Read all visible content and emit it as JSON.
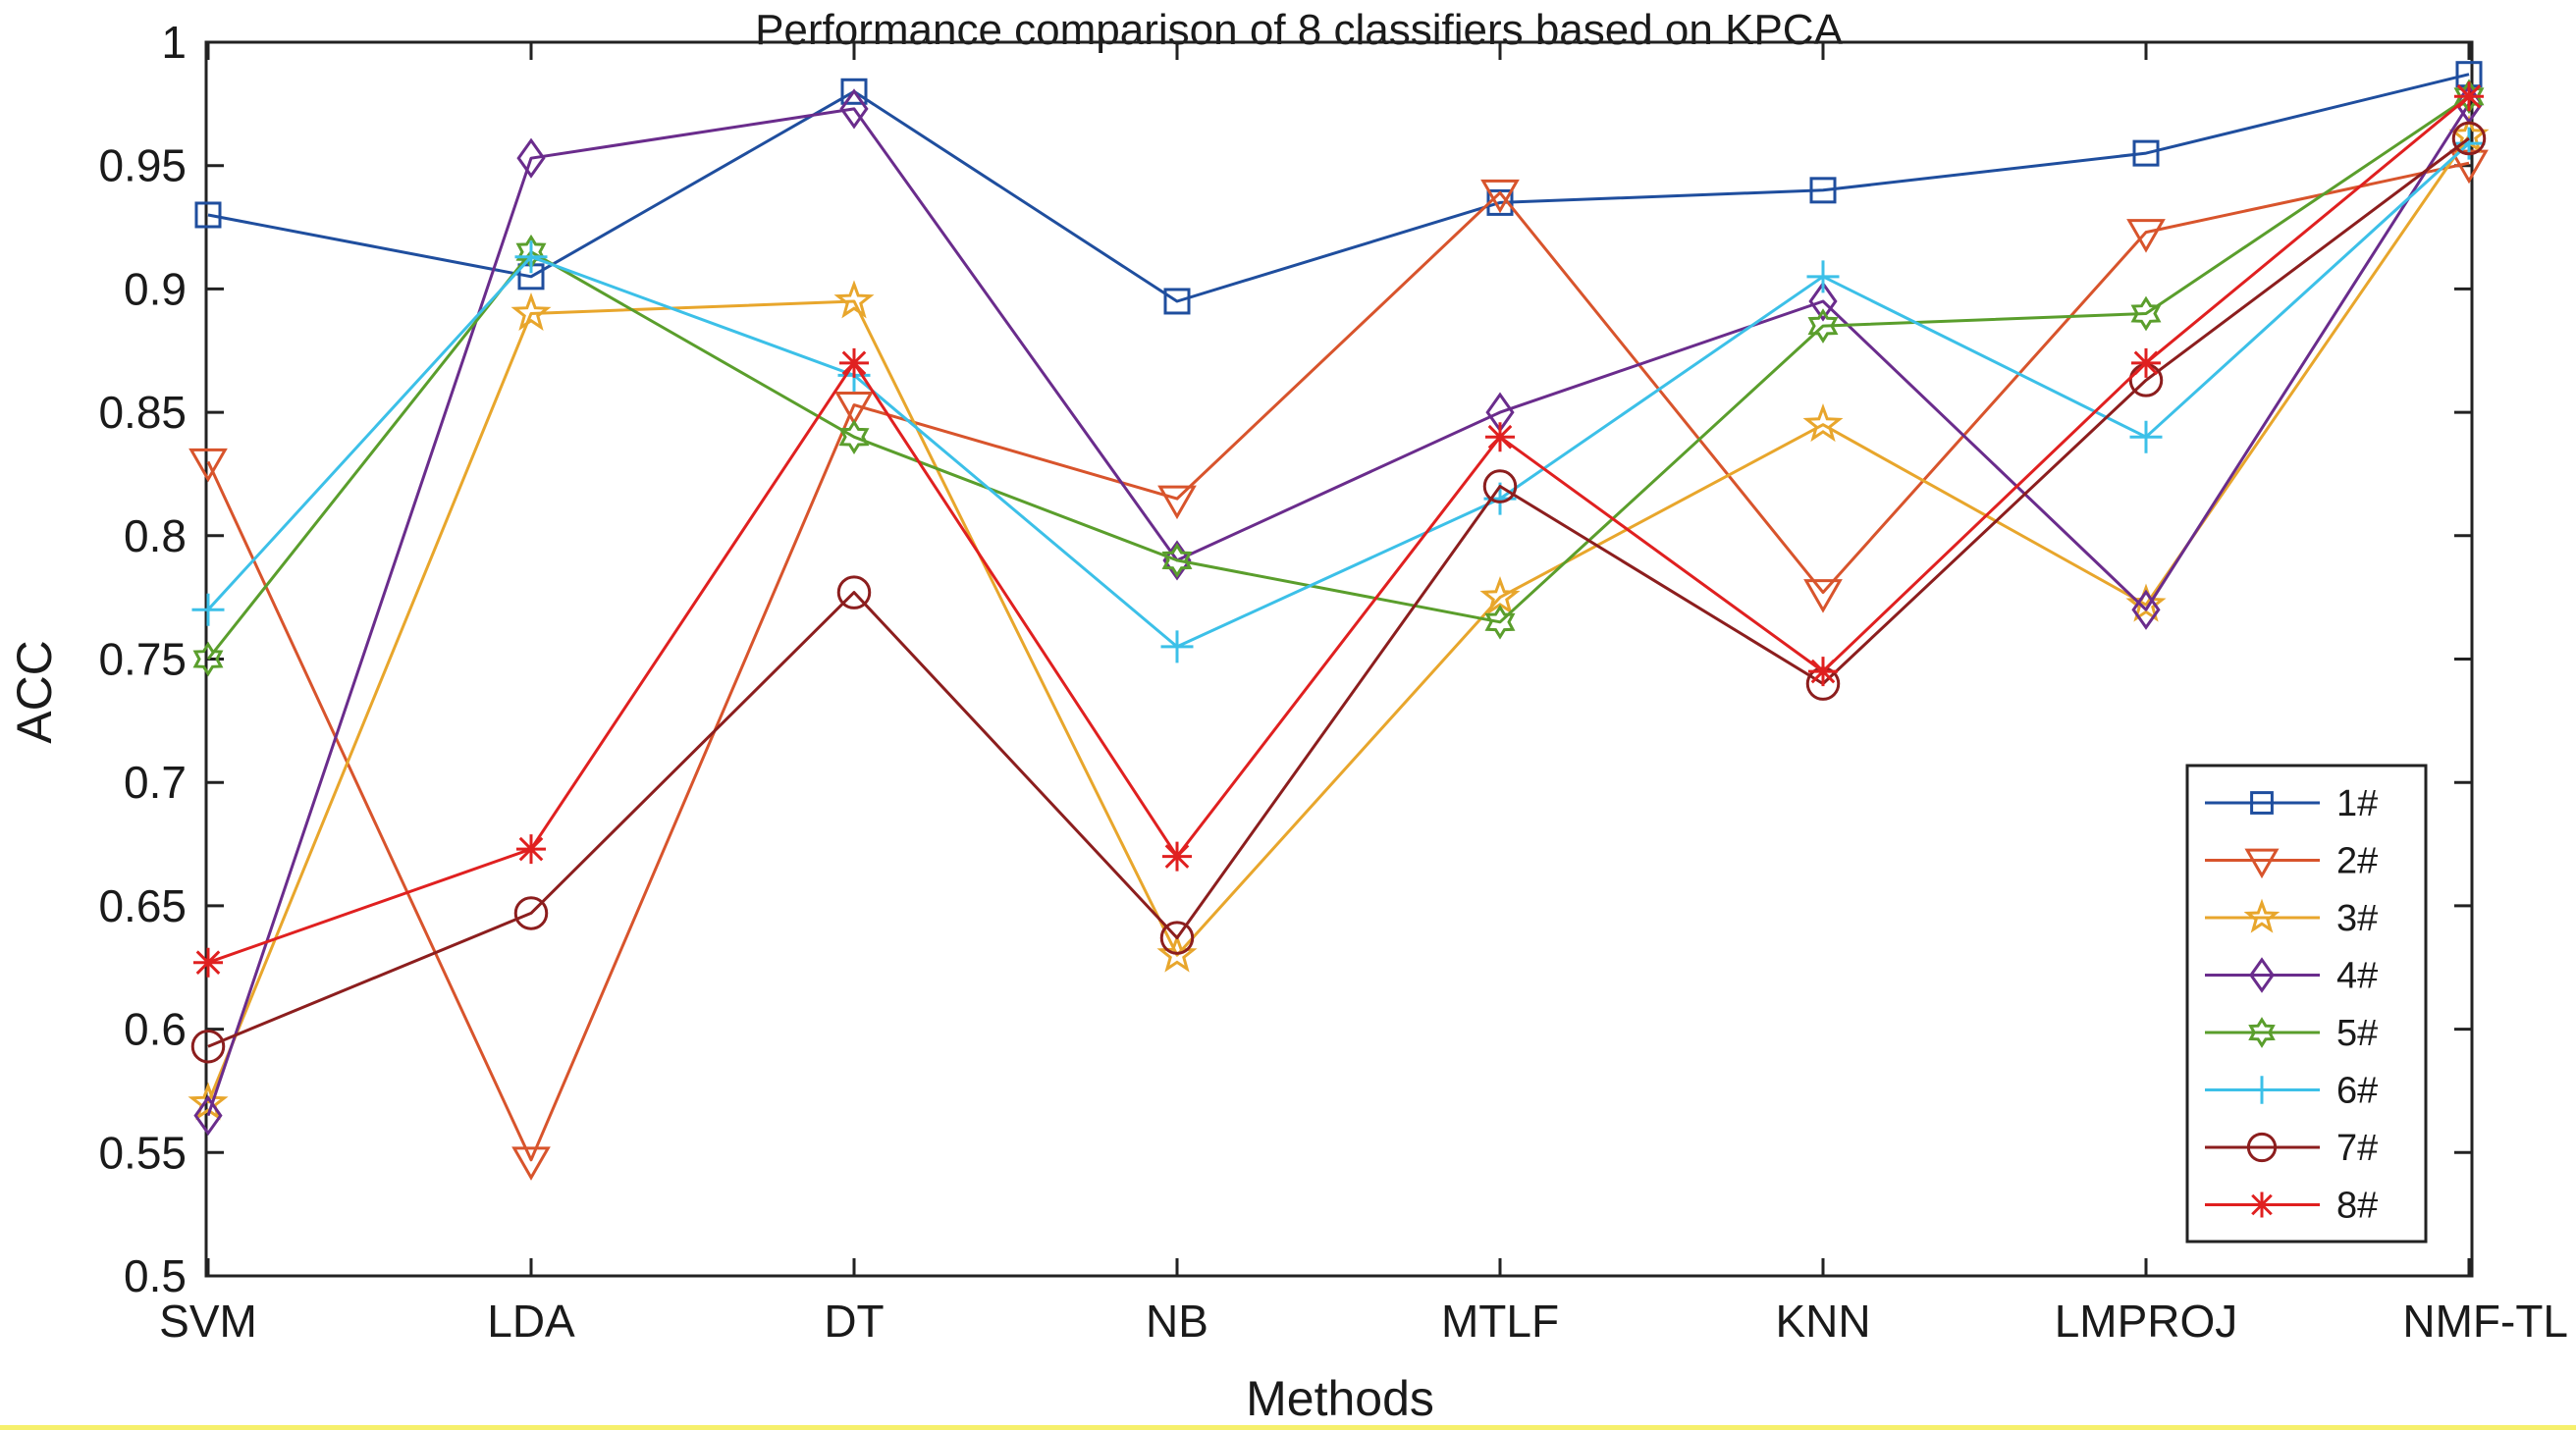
{
  "chart_data": {
    "type": "line",
    "title": "Performance comparison of 8 classifiers  based on KPCA",
    "xlabel": "Methods",
    "ylabel": "ACC",
    "categories": [
      "SVM",
      "LDA",
      "DT",
      "NB",
      "MTLF",
      "KNN",
      "LMPROJ",
      "NMF-TL"
    ],
    "ylim": [
      0.5,
      1
    ],
    "yticks": [
      "0.5",
      "0.55",
      "0.6",
      "0.65",
      "0.7",
      "0.75",
      "0.8",
      "0.85",
      "0.9",
      "0.95",
      "1"
    ],
    "grid": false,
    "legend_position": "bottom-right",
    "series": [
      {
        "name": "1#",
        "color": "#1f4e9e",
        "marker": "square",
        "values": [
          0.93,
          0.905,
          0.98,
          0.895,
          0.935,
          0.94,
          0.955,
          0.987
        ]
      },
      {
        "name": "2#",
        "color": "#d8542c",
        "marker": "triangle-down",
        "values": [
          0.83,
          0.547,
          0.853,
          0.815,
          0.939,
          0.777,
          0.923,
          0.951
        ]
      },
      {
        "name": "3#",
        "color": "#e8a62c",
        "marker": "star",
        "values": [
          0.57,
          0.89,
          0.895,
          0.63,
          0.775,
          0.845,
          0.772,
          0.962
        ]
      },
      {
        "name": "4#",
        "color": "#6a2c8c",
        "marker": "diamond",
        "values": [
          0.565,
          0.953,
          0.973,
          0.79,
          0.85,
          0.895,
          0.77,
          0.975
        ]
      },
      {
        "name": "5#",
        "color": "#5a9e2c",
        "marker": "hexagram",
        "values": [
          0.75,
          0.915,
          0.84,
          0.79,
          0.765,
          0.885,
          0.89,
          0.978
        ]
      },
      {
        "name": "6#",
        "color": "#3cc0e8",
        "marker": "plus",
        "values": [
          0.77,
          0.913,
          0.865,
          0.755,
          0.815,
          0.905,
          0.84,
          0.959
        ]
      },
      {
        "name": "7#",
        "color": "#8c1e1e",
        "marker": "circle",
        "values": [
          0.593,
          0.647,
          0.777,
          0.637,
          0.82,
          0.74,
          0.863,
          0.961
        ]
      },
      {
        "name": "8#",
        "color": "#e02020",
        "marker": "asterisk",
        "values": [
          0.627,
          0.673,
          0.87,
          0.67,
          0.84,
          0.745,
          0.87,
          0.978
        ]
      }
    ]
  }
}
